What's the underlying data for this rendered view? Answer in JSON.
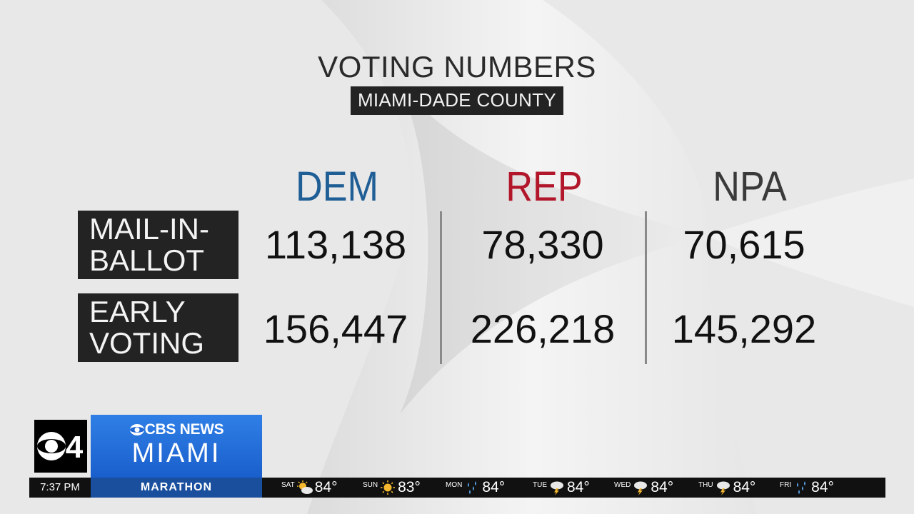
{
  "title": "VOTING NUMBERS",
  "subtitle": "MIAMI-DADE COUNTY",
  "columns": [
    {
      "label": "DEM",
      "color": "#1f5f96"
    },
    {
      "label": "REP",
      "color": "#b2162a"
    },
    {
      "label": "NPA",
      "color": "#3a3a3a"
    }
  ],
  "rows": [
    {
      "label_line1": "MAIL-IN-",
      "label_line2": "BALLOT",
      "values": [
        "113,138",
        "78,330",
        "70,615"
      ]
    },
    {
      "label_line1": "EARLY",
      "label_line2": "VOTING",
      "values": [
        "156,447",
        "226,218",
        "145,292"
      ]
    }
  ],
  "station": {
    "logo_number": "4",
    "network": "CBS NEWS",
    "city": "MIAMI",
    "brand_color": "#2a74e0"
  },
  "ticker": {
    "time": "7:37 PM",
    "tag": "MARATHON",
    "forecast": [
      {
        "day": "SAT",
        "icon": "partly-sunny-icon",
        "temp": "84°"
      },
      {
        "day": "SUN",
        "icon": "sunny-icon",
        "temp": "83°"
      },
      {
        "day": "MON",
        "icon": "rain-icon",
        "temp": "84°"
      },
      {
        "day": "TUE",
        "icon": "thunderstorm-icon",
        "temp": "84°"
      },
      {
        "day": "WED",
        "icon": "thunderstorm-icon",
        "temp": "84°"
      },
      {
        "day": "THU",
        "icon": "thunderstorm-icon",
        "temp": "84°"
      },
      {
        "day": "FRI",
        "icon": "rain-icon",
        "temp": "84°"
      }
    ]
  }
}
